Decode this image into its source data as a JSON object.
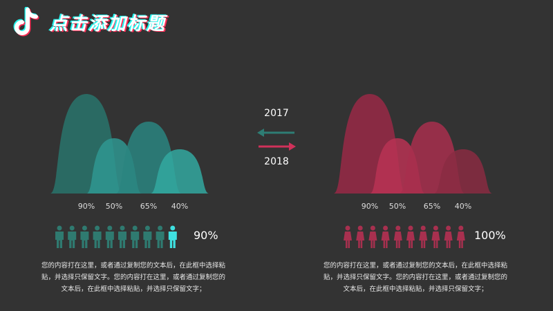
{
  "header": {
    "title": "点击添加标题",
    "logo_icon": "tiktok-note-icon",
    "colors": {
      "cyan": "#25f4ee",
      "pink": "#fe2c55"
    }
  },
  "legend": {
    "year_top": "2017",
    "year_bottom": "2018",
    "arrow_top_color": "#2e7d74",
    "arrow_bottom_color": "#d0315a"
  },
  "chart_data": [
    {
      "type": "area",
      "categories": [
        "90%",
        "50%",
        "65%",
        "40%"
      ],
      "values": [
        90,
        50,
        65,
        40
      ],
      "ylim": [
        0,
        100
      ],
      "colors": [
        "#2a6e66",
        "#2f9690",
        "#2a8580",
        "#33a8a0"
      ],
      "stat": {
        "value": "90%",
        "filled": 9,
        "total": 10,
        "icon": "male-person-icon",
        "icon_color": "#2f7a70",
        "highlight_color": "#3fe0e0"
      },
      "description": "您的内容打在这里，或者通过复制您的文本后，在此框中选择粘贴，并选择只保留文字。您的内容打在这里，或者通过复制您的文本后，在此框中选择粘贴，并选择只保留文字；"
    },
    {
      "type": "area",
      "categories": [
        "90%",
        "50%",
        "65%",
        "40%"
      ],
      "values": [
        90,
        50,
        65,
        40
      ],
      "ylim": [
        0,
        100
      ],
      "colors": [
        "#8e2a44",
        "#b83354",
        "#a82f4e",
        "#8a2c42"
      ],
      "stat": {
        "value": "100%",
        "filled": 10,
        "total": 10,
        "icon": "female-person-icon",
        "icon_color": "#a8304f",
        "highlight_color": "#a8304f"
      },
      "description": "您的内容打在这里，或者通过复制您的文本后，在此框中选择粘贴，并选择只保留文字。您的内容打在这里，或者通过复制您的文本后，在此框中选择粘贴，并选择只保留文字；"
    }
  ]
}
